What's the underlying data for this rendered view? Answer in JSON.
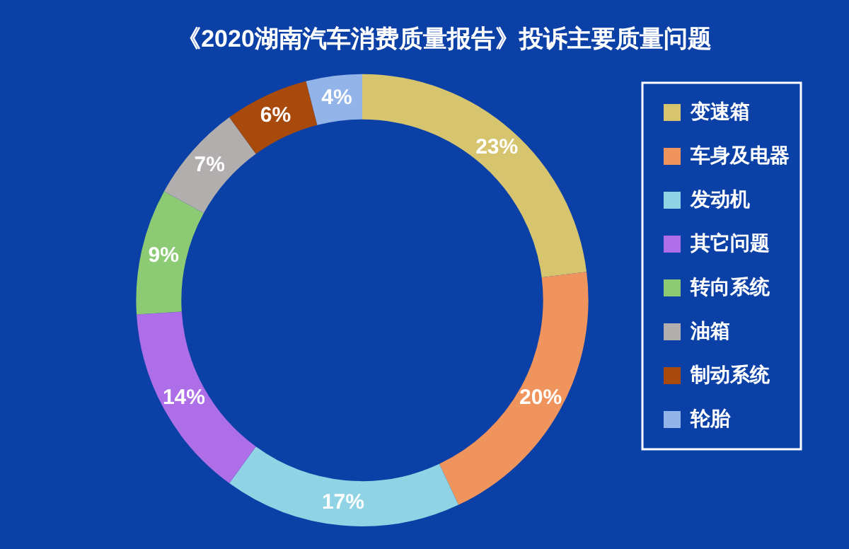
{
  "chart_data": {
    "type": "donut",
    "title": "《2020湖南汽车消费质量报告》投诉主要质量问题",
    "categories": [
      "变速箱",
      "车身及电器",
      "发动机",
      "其它问题",
      "转向系统",
      "油箱",
      "制动系统",
      "轮胎"
    ],
    "values": [
      23,
      20,
      17,
      14,
      9,
      7,
      6,
      4
    ],
    "value_labels": [
      "23%",
      "20%",
      "17%",
      "14%",
      "9%",
      "7%",
      "6%",
      "4%"
    ],
    "colors": [
      "#d6c46e",
      "#f0945e",
      "#8fd3e4",
      "#ad6ee8",
      "#8ccb74",
      "#b3aeae",
      "#a84a0c",
      "#93b4e8"
    ],
    "legend": "right"
  }
}
